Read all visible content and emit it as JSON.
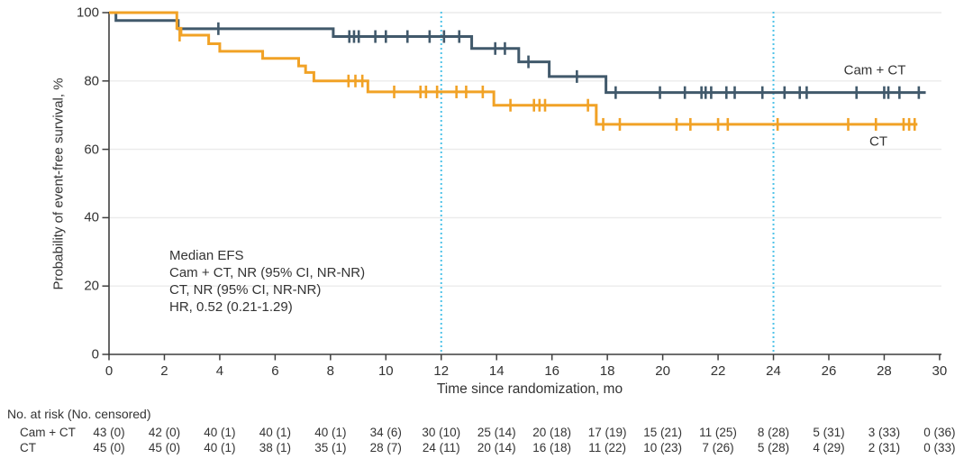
{
  "colors": {
    "cam_ct": "#41596B",
    "ct": "#F1A226",
    "reference_line": "#4FC3E8",
    "grid": "#EBEBEB",
    "axis": "#3F3F3F",
    "text": "#333333"
  },
  "annotation": {
    "lines": [
      "Median EFS",
      "Cam + CT, NR (95% CI, NR-NR)",
      "CT, NR (95% CI, NR-NR)",
      "HR, 0.52 (0.21-1.29)"
    ]
  },
  "chart_data": {
    "type": "line",
    "subtype": "kaplan-meier-step",
    "title": "",
    "xlabel": "Time since randomization, mo",
    "ylabel": "Probability of event-free survival, %",
    "xlim": [
      0,
      30
    ],
    "ylim": [
      0,
      100
    ],
    "xticks": [
      0,
      2,
      4,
      6,
      8,
      10,
      12,
      14,
      16,
      18,
      20,
      22,
      24,
      26,
      28,
      30
    ],
    "yticks": [
      0,
      20,
      40,
      60,
      80,
      100
    ],
    "grid": "horizontal-only",
    "reference_lines_x": [
      12,
      24
    ],
    "legend_position": "right-of-curves",
    "series": [
      {
        "name": "Cam + CT",
        "color": "#41596B",
        "steps": [
          [
            0,
            100
          ],
          [
            0.25,
            97.7
          ],
          [
            2.5,
            95.3
          ],
          [
            8.1,
            93.0
          ],
          [
            13.1,
            89.5
          ],
          [
            14.8,
            85.6
          ],
          [
            15.9,
            81.3
          ],
          [
            17.95,
            76.6
          ]
        ],
        "end_time": 29.5,
        "final_value": 76.6,
        "censor_marks": [
          [
            3.95,
            95.3
          ],
          [
            8.68,
            93.0
          ],
          [
            8.85,
            93.0
          ],
          [
            9.02,
            93.0
          ],
          [
            9.62,
            93.0
          ],
          [
            10.0,
            93.0
          ],
          [
            10.78,
            93.0
          ],
          [
            11.58,
            93.0
          ],
          [
            12.1,
            93.0
          ],
          [
            12.65,
            93.0
          ],
          [
            13.95,
            89.5
          ],
          [
            14.3,
            89.5
          ],
          [
            15.15,
            85.6
          ],
          [
            16.9,
            81.3
          ],
          [
            18.3,
            76.6
          ],
          [
            19.9,
            76.6
          ],
          [
            20.8,
            76.6
          ],
          [
            21.4,
            76.6
          ],
          [
            21.55,
            76.6
          ],
          [
            21.75,
            76.6
          ],
          [
            22.3,
            76.6
          ],
          [
            22.6,
            76.6
          ],
          [
            23.6,
            76.6
          ],
          [
            24.4,
            76.6
          ],
          [
            24.95,
            76.6
          ],
          [
            25.2,
            76.6
          ],
          [
            27.0,
            76.6
          ],
          [
            28.0,
            76.6
          ],
          [
            28.15,
            76.6
          ],
          [
            28.55,
            76.6
          ],
          [
            29.25,
            76.6
          ]
        ]
      },
      {
        "name": "CT",
        "color": "#F1A226",
        "steps": [
          [
            0,
            100
          ],
          [
            2.45,
            95.4
          ],
          [
            2.6,
            93.4
          ],
          [
            3.6,
            90.9
          ],
          [
            4.0,
            88.7
          ],
          [
            5.55,
            86.6
          ],
          [
            6.85,
            84.4
          ],
          [
            7.1,
            82.5
          ],
          [
            7.4,
            80.0
          ],
          [
            9.35,
            76.8
          ],
          [
            13.9,
            72.9
          ],
          [
            17.6,
            67.3
          ]
        ],
        "end_time": 29.2,
        "final_value": 67.3,
        "censor_marks": [
          [
            2.55,
            93.4
          ],
          [
            8.65,
            80.0
          ],
          [
            8.9,
            80.0
          ],
          [
            9.15,
            80.0
          ],
          [
            10.3,
            76.8
          ],
          [
            11.25,
            76.8
          ],
          [
            11.45,
            76.8
          ],
          [
            11.85,
            76.8
          ],
          [
            12.55,
            76.8
          ],
          [
            12.9,
            76.8
          ],
          [
            13.5,
            76.8
          ],
          [
            14.5,
            72.9
          ],
          [
            15.35,
            72.9
          ],
          [
            15.55,
            72.9
          ],
          [
            15.75,
            72.9
          ],
          [
            17.3,
            72.9
          ],
          [
            17.85,
            67.3
          ],
          [
            18.45,
            67.3
          ],
          [
            20.5,
            67.3
          ],
          [
            21.0,
            67.3
          ],
          [
            22.0,
            67.3
          ],
          [
            22.35,
            67.3
          ],
          [
            24.15,
            67.3
          ],
          [
            26.7,
            67.3
          ],
          [
            27.7,
            67.3
          ],
          [
            28.7,
            67.3
          ],
          [
            28.9,
            67.3
          ],
          [
            29.1,
            67.3
          ]
        ]
      }
    ]
  },
  "risk_table": {
    "header": "No. at risk (No. censored)",
    "times": [
      0,
      2,
      4,
      6,
      8,
      10,
      12,
      14,
      16,
      18,
      20,
      22,
      24,
      26,
      28,
      30
    ],
    "rows": [
      {
        "label": "Cam + CT",
        "values": [
          "43 (0)",
          "42 (0)",
          "40 (1)",
          "40 (1)",
          "40 (1)",
          "34 (6)",
          "30 (10)",
          "25 (14)",
          "20 (18)",
          "17 (19)",
          "15 (21)",
          "11 (25)",
          "8 (28)",
          "5 (31)",
          "3 (33)",
          "0 (36)"
        ]
      },
      {
        "label": "CT",
        "values": [
          "45 (0)",
          "45 (0)",
          "40 (1)",
          "38 (1)",
          "35 (1)",
          "28 (7)",
          "24 (11)",
          "20 (14)",
          "16 (18)",
          "11 (22)",
          "10 (23)",
          "7 (26)",
          "5 (28)",
          "4 (29)",
          "2 (31)",
          "0 (33)"
        ]
      }
    ]
  }
}
